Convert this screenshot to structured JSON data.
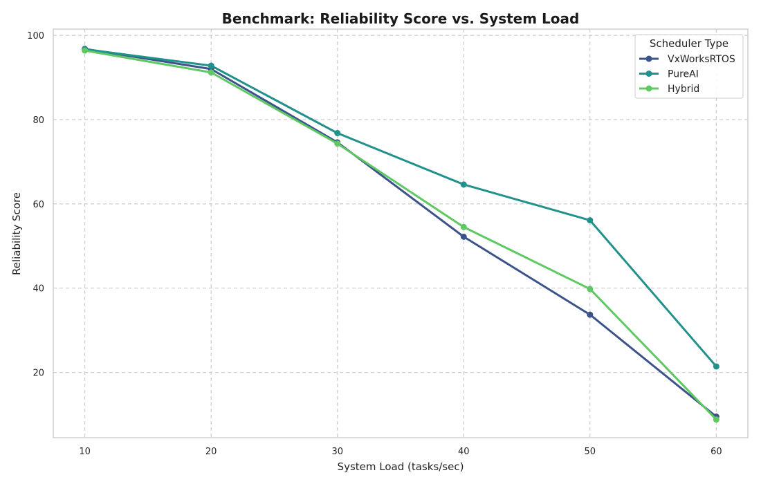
{
  "chart_data": {
    "type": "line",
    "title": "Benchmark: Reliability Score vs. System Load",
    "xlabel": "System Load (tasks/sec)",
    "ylabel": "Reliability Score",
    "x": [
      10,
      20,
      30,
      40,
      50,
      60
    ],
    "xticks": [
      10,
      20,
      30,
      40,
      50,
      60
    ],
    "yticks": [
      20,
      40,
      60,
      80,
      100
    ],
    "xlim": [
      7.5,
      62.5
    ],
    "ylim": [
      4.5,
      101.5
    ],
    "grid": true,
    "grid_style": "dashed",
    "legend": {
      "title": "Scheduler Type",
      "placement": "top-right"
    },
    "series": [
      {
        "name": "VxWorksRTOS",
        "color": "#3b528b",
        "values": [
          96.8,
          92.0,
          74.6,
          52.2,
          33.7,
          9.5
        ]
      },
      {
        "name": "PureAI",
        "color": "#21918c",
        "values": [
          96.7,
          92.8,
          76.8,
          64.6,
          56.1,
          21.4
        ]
      },
      {
        "name": "Hybrid",
        "color": "#5ec962",
        "values": [
          96.4,
          91.2,
          74.3,
          54.5,
          39.8,
          8.8
        ]
      }
    ]
  }
}
